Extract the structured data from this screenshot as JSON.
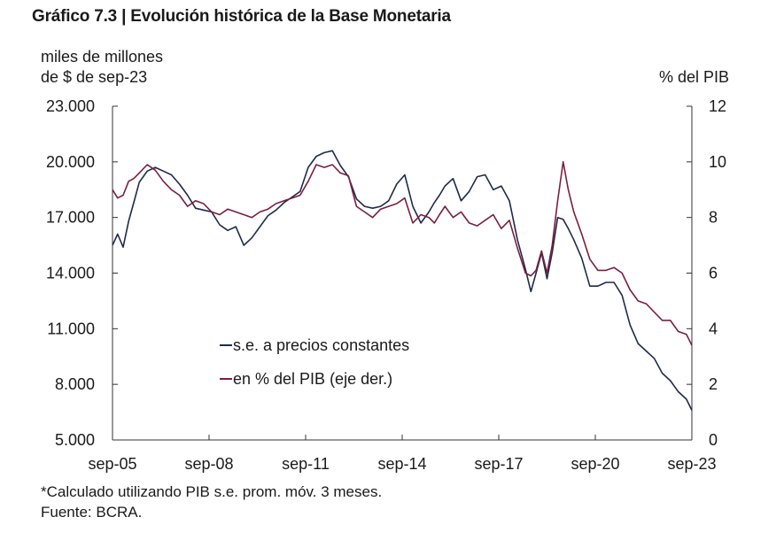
{
  "chart_data": {
    "type": "line",
    "title": "Gráfico 7.3 | Evolución histórica de la Base Monetaria",
    "ylabel_left": "miles de millones de $ de sep-23",
    "ylabel_right": "% del PIB",
    "x_tick_labels": [
      "sep-05",
      "sep-08",
      "sep-11",
      "sep-14",
      "sep-17",
      "sep-20",
      "sep-23"
    ],
    "x_range": [
      2005.67,
      2023.67
    ],
    "y_left": {
      "range": [
        5000,
        23000
      ],
      "ticks": [
        5000,
        8000,
        11000,
        14000,
        17000,
        20000,
        23000
      ],
      "tick_labels": [
        "5.000",
        "8.000",
        "11.000",
        "14.000",
        "17.000",
        "20.000",
        "23.000"
      ]
    },
    "y_right": {
      "range": [
        0,
        12
      ],
      "ticks": [
        0,
        2,
        4,
        6,
        8,
        10,
        12
      ],
      "tick_labels": [
        "0",
        "2",
        "4",
        "6",
        "8",
        "10",
        "12"
      ]
    },
    "legend_position": "center-left",
    "grid": false,
    "series": [
      {
        "name": "s.e. a precios constantes",
        "axis": "left",
        "color": "#1f2a4d",
        "x": [
          2005.67,
          2005.83,
          2006.0,
          2006.17,
          2006.33,
          2006.5,
          2006.75,
          2007.0,
          2007.25,
          2007.5,
          2007.75,
          2008.0,
          2008.25,
          2008.5,
          2008.75,
          2009.0,
          2009.25,
          2009.5,
          2009.75,
          2010.0,
          2010.25,
          2010.5,
          2010.75,
          2011.0,
          2011.25,
          2011.5,
          2011.75,
          2012.0,
          2012.25,
          2012.5,
          2012.75,
          2013.0,
          2013.25,
          2013.5,
          2013.75,
          2014.0,
          2014.25,
          2014.5,
          2014.75,
          2015.0,
          2015.25,
          2015.5,
          2015.67,
          2015.83,
          2016.0,
          2016.25,
          2016.5,
          2016.75,
          2017.0,
          2017.25,
          2017.5,
          2017.75,
          2018.0,
          2018.25,
          2018.5,
          2018.67,
          2018.83,
          2019.0,
          2019.17,
          2019.33,
          2019.5,
          2019.67,
          2019.83,
          2020.0,
          2020.25,
          2020.5,
          2020.75,
          2021.0,
          2021.25,
          2021.5,
          2021.75,
          2022.0,
          2022.25,
          2022.5,
          2022.75,
          2023.0,
          2023.25,
          2023.5,
          2023.67
        ],
        "y": [
          15500,
          16100,
          15400,
          16800,
          17800,
          18900,
          19500,
          19700,
          19500,
          19300,
          18800,
          18200,
          17500,
          17400,
          17300,
          16600,
          16300,
          16500,
          15500,
          15900,
          16500,
          17100,
          17400,
          17800,
          18100,
          18400,
          19700,
          20300,
          20500,
          20600,
          19800,
          19200,
          18000,
          17600,
          17500,
          17600,
          17900,
          18800,
          19300,
          17600,
          16700,
          17300,
          17800,
          18200,
          18700,
          19100,
          17900,
          18400,
          19200,
          19300,
          18500,
          18700,
          17900,
          15800,
          14200,
          13000,
          14000,
          15100,
          13700,
          15100,
          17000,
          16900,
          16400,
          15800,
          14800,
          13300,
          13300,
          13500,
          13500,
          12800,
          11200,
          10200,
          9800,
          9400,
          8600,
          8200,
          7600,
          7200,
          6600
        ]
      },
      {
        "name": "en % del PIB (eje der.)",
        "axis": "right",
        "color": "#7a1f3d",
        "x": [
          2005.67,
          2005.83,
          2006.0,
          2006.17,
          2006.33,
          2006.5,
          2006.75,
          2007.0,
          2007.25,
          2007.5,
          2007.75,
          2008.0,
          2008.25,
          2008.5,
          2008.75,
          2009.0,
          2009.25,
          2009.5,
          2009.75,
          2010.0,
          2010.25,
          2010.5,
          2010.75,
          2011.0,
          2011.25,
          2011.5,
          2011.75,
          2012.0,
          2012.25,
          2012.5,
          2012.75,
          2013.0,
          2013.25,
          2013.5,
          2013.75,
          2014.0,
          2014.25,
          2014.5,
          2014.75,
          2015.0,
          2015.25,
          2015.5,
          2015.67,
          2015.83,
          2016.0,
          2016.25,
          2016.5,
          2016.75,
          2017.0,
          2017.25,
          2017.5,
          2017.75,
          2018.0,
          2018.25,
          2018.5,
          2018.67,
          2018.83,
          2019.0,
          2019.17,
          2019.33,
          2019.5,
          2019.67,
          2019.83,
          2020.0,
          2020.25,
          2020.5,
          2020.75,
          2021.0,
          2021.25,
          2021.5,
          2021.75,
          2022.0,
          2022.25,
          2022.5,
          2022.75,
          2023.0,
          2023.25,
          2023.5,
          2023.67
        ],
        "y": [
          9.0,
          8.7,
          8.8,
          9.3,
          9.4,
          9.6,
          9.9,
          9.7,
          9.3,
          9.0,
          8.8,
          8.4,
          8.6,
          8.5,
          8.2,
          8.1,
          8.3,
          8.2,
          8.1,
          8.0,
          8.2,
          8.3,
          8.5,
          8.6,
          8.7,
          8.8,
          9.3,
          9.9,
          9.8,
          9.9,
          9.6,
          9.5,
          8.4,
          8.2,
          8.0,
          8.3,
          8.4,
          8.5,
          8.7,
          7.8,
          8.1,
          8.0,
          7.8,
          8.1,
          8.4,
          8.0,
          8.2,
          7.8,
          7.7,
          7.9,
          8.1,
          7.6,
          7.9,
          6.9,
          6.0,
          5.9,
          6.1,
          6.8,
          6.0,
          7.0,
          8.6,
          10.0,
          9.0,
          8.2,
          7.4,
          6.5,
          6.1,
          6.1,
          6.2,
          6.0,
          5.4,
          5.0,
          4.9,
          4.6,
          4.3,
          4.3,
          3.9,
          3.8,
          3.4
        ]
      }
    ]
  },
  "notes": {
    "footnote": "*Calculado utilizando PIB s.e. prom. móv. 3 meses.",
    "source": "Fuente: BCRA."
  }
}
